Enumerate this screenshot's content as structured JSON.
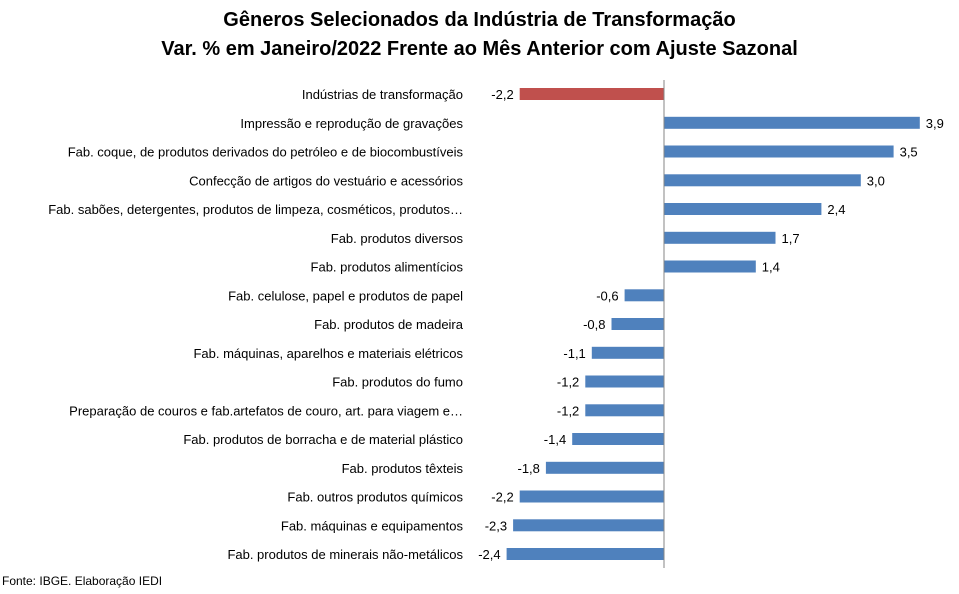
{
  "title_line1": "Gêneros Selecionados da Indústria de Transformação",
  "title_line2": "Var. % em Janeiro/2022 Frente ao Mês Anterior com Ajuste Sazonal",
  "source": "Fonte: IBGE. Elaboração IEDI",
  "colors": {
    "highlight": "#C0504D",
    "bar": "#4F81BD",
    "axis": "#868686"
  },
  "chart_data": {
    "type": "bar",
    "orientation": "horizontal",
    "title": "Gêneros Selecionados da Indústria de Transformação - Var. % em Janeiro/2022 Frente ao Mês Anterior com Ajuste Sazonal",
    "categories": [
      "Indústrias de transformação",
      "Impressão e reprodução de gravações",
      "Fab. coque, de produtos derivados do petróleo e de biocombustíveis",
      "Confecção de artigos do vestuário e acessórios",
      "Fab. sabões, detergentes, produtos de limpeza, cosméticos, produtos…",
      "Fab. produtos diversos",
      "Fab. produtos alimentícios",
      "Fab. celulose, papel e produtos de papel",
      "Fab. produtos de madeira",
      "Fab. máquinas, aparelhos e materiais elétricos",
      "Fab. produtos do fumo",
      "Preparação de couros e fab.artefatos de couro, art. para viagem e…",
      "Fab. produtos de borracha e de material plástico",
      "Fab. produtos têxteis",
      "Fab. outros produtos químicos",
      "Fab. máquinas e equipamentos",
      "Fab. produtos de minerais não-metálicos"
    ],
    "values": [
      -2.2,
      3.9,
      3.5,
      3.0,
      2.4,
      1.7,
      1.4,
      -0.6,
      -0.8,
      -1.1,
      -1.2,
      -1.2,
      -1.4,
      -1.8,
      -2.2,
      -2.3,
      -2.4
    ],
    "value_labels": [
      "-2,2",
      "3,9",
      "3,5",
      "3,0",
      "2,4",
      "1,7",
      "1,4",
      "-0,6",
      "-0,8",
      "-1,1",
      "-1,2",
      "-1,2",
      "-1,4",
      "-1,8",
      "-2,2",
      "-2,3",
      "-2,4"
    ],
    "highlight_index": 0,
    "xlim": [
      -2.4,
      3.9
    ],
    "grid": false,
    "legend": "none"
  }
}
